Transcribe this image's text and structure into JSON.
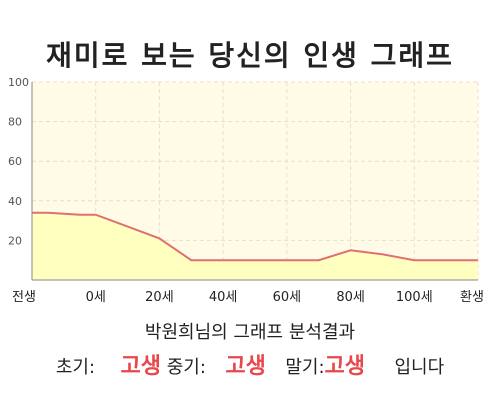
{
  "chart_data": {
    "type": "area",
    "title": "재미로 보는 당신의 인생 그래프",
    "x_labels": [
      "전생",
      "0세",
      "20세",
      "40세",
      "60세",
      "80세",
      "100세",
      "환생"
    ],
    "x": [
      -20,
      0,
      20,
      40,
      60,
      80,
      100,
      120
    ],
    "series": [
      {
        "x": [
          -20,
          -15,
          -5,
          0,
          20,
          30,
          40,
          50,
          60,
          70,
          80,
          90,
          100,
          105,
          110,
          118,
          120
        ],
        "values": [
          34,
          34,
          33,
          33,
          21,
          10,
          10,
          10,
          10,
          10,
          15,
          13,
          10,
          10,
          10,
          10,
          10
        ],
        "color": "#e07070",
        "fill": "#ffffbf"
      }
    ],
    "ylim": [
      0,
      100
    ],
    "yticks": [
      20,
      40,
      60,
      80,
      100
    ],
    "grid": true,
    "plot_background": "#fffbe6"
  },
  "caption": {
    "subtitle": "박원희님의 그래프 분석결과",
    "early_label": "초기:",
    "early_value": "고생",
    "mid_label": "중기:",
    "mid_value": "고생",
    "late_label": "말기:",
    "late_value": "고생",
    "ending": "입니다"
  }
}
